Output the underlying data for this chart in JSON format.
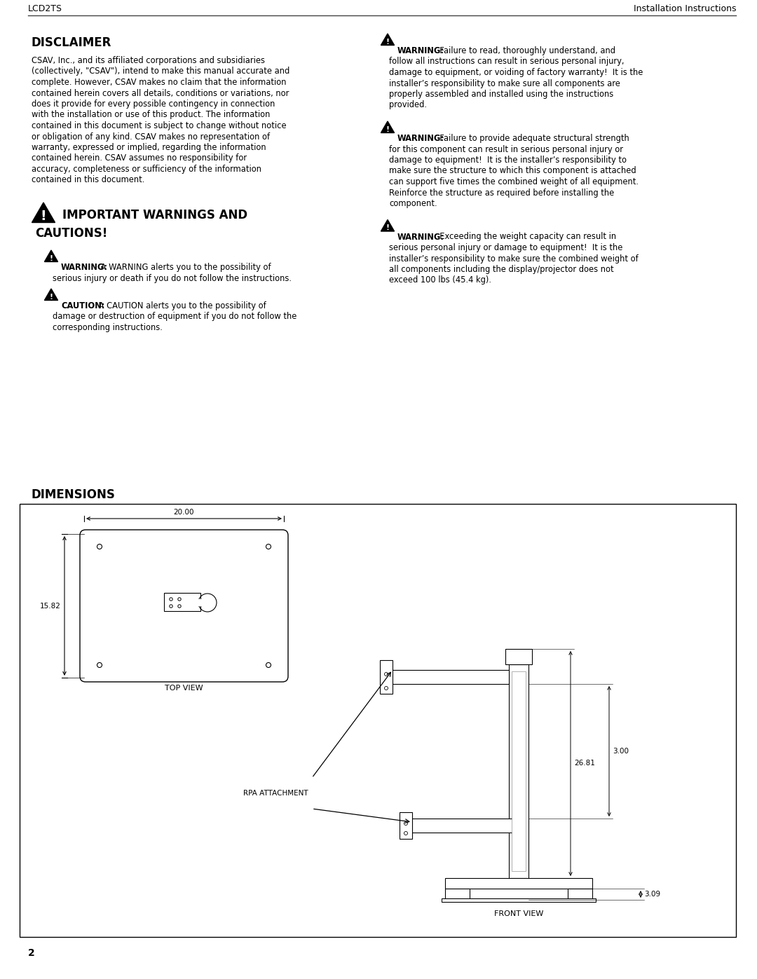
{
  "page_bg": "#ffffff",
  "header_left": "LCD2TS",
  "header_right": "Installation Instructions",
  "section1_title": "DISCLAIMER",
  "disclaimer_text_lines": [
    "CSAV, Inc., and its affiliated corporations and subsidiaries",
    "(collectively, \"CSAV\"), intend to make this manual accurate and",
    "complete. However, CSAV makes no claim that the information",
    "contained herein covers all details, conditions or variations, nor",
    "does it provide for every possible contingency in connection",
    "with the installation or use of this product. The information",
    "contained in this document is subject to change without notice",
    "or obligation of any kind. CSAV makes no representation of",
    "warranty, expressed or implied, regarding the information",
    "contained herein. CSAV assumes no responsibility for",
    "accuracy, completeness or sufficiency of the information",
    "contained in this document."
  ],
  "section2_title_line1": "IMPORTANT WARNINGS AND",
  "section2_title_line2": "CAUTIONS!",
  "warning_label": "WARNING:",
  "caution_label": "CAUTION:",
  "warning1_rest": " A WARNING alerts you to the possibility of",
  "warning1_line2": "serious injury or death if you do not follow the instructions.",
  "caution1_rest": " A CAUTION alerts you to the possibility of",
  "caution1_line2": "damage or destruction of equipment if you do not follow the",
  "caution1_line3": "corresponding instructions.",
  "rw1_label": "WARNING:",
  "rw1_rest": "  Failure to read, thoroughly understand, and",
  "rw1_lines": [
    "follow all instructions can result in serious personal injury,",
    "damage to equipment, or voiding of factory warranty!  It is the",
    "installer’s responsibility to make sure all components are",
    "properly assembled and installed using the instructions",
    "provided."
  ],
  "rw2_label": "WARNING:",
  "rw2_rest": "  Failure to provide adequate structural strength",
  "rw2_lines": [
    "for this component can result in serious personal injury or",
    "damage to equipment!  It is the installer’s responsibility to",
    "make sure the structure to which this component is attached",
    "can support five times the combined weight of all equipment.",
    "Reinforce the structure as required before installing the",
    "component."
  ],
  "rw3_label": "WARNING:",
  "rw3_rest": "  Exceeding the weight capacity can result in",
  "rw3_lines": [
    "serious personal injury or damage to equipment!  It is the",
    "installer’s responsibility to make sure the combined weight of",
    "all components including the display/projector does not",
    "exceed 100 lbs (45.4 kg)."
  ],
  "section3_title": "DIMENSIONS",
  "dim_width": "20.00",
  "dim_height": "15.82",
  "dim_total_h": "26.81",
  "dim_arm": "3.00",
  "dim_base": "3.09",
  "rpa_label": "RPA ATTACHMENT",
  "top_view_label": "TOP VIEW",
  "front_view_label": "FRONT VIEW",
  "footer_page": "2"
}
